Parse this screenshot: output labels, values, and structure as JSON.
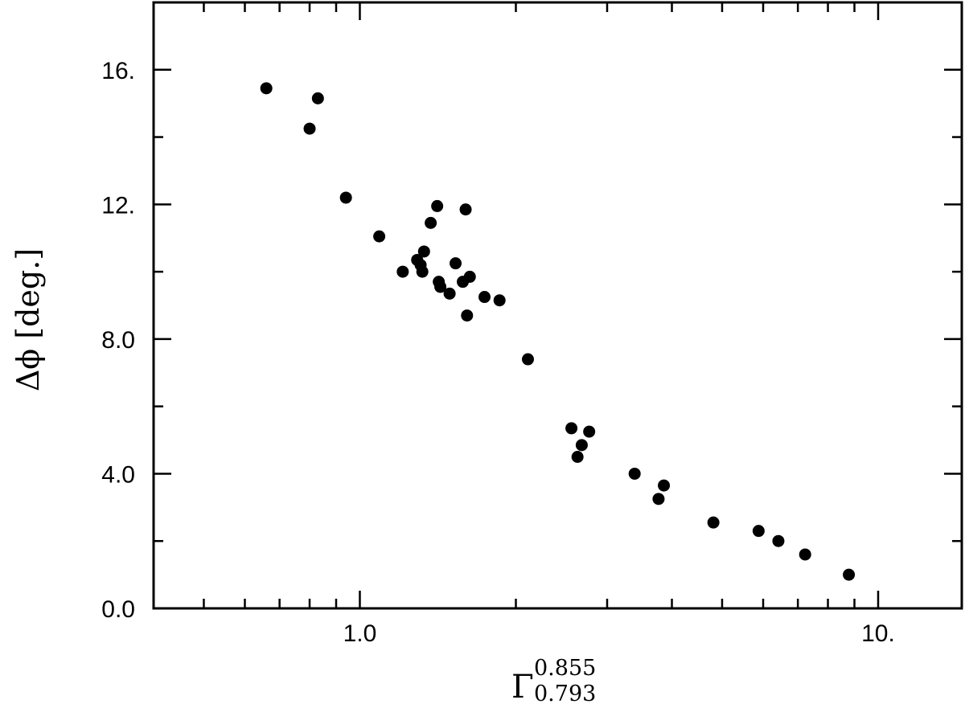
{
  "chart_data": {
    "type": "scatter",
    "title": "",
    "xlabel": {
      "base": "Γ",
      "superscript": "0.855",
      "subscript": "0.793"
    },
    "ylabel": "Δϕ  [deg.]",
    "x_scale": "log",
    "xlim": [
      0.4,
      14.5
    ],
    "ylim": [
      0,
      18
    ],
    "x_tick_labels": [
      {
        "value": 1.0,
        "label": "1.0"
      },
      {
        "value": 10.0,
        "label": "10."
      }
    ],
    "y_tick_labels": [
      {
        "value": 0,
        "label": "0.0"
      },
      {
        "value": 4,
        "label": "4.0"
      },
      {
        "value": 8,
        "label": "8.0"
      },
      {
        "value": 12,
        "label": "12."
      },
      {
        "value": 16,
        "label": "16."
      }
    ],
    "grid": false,
    "marker_color": "#000000",
    "points": [
      {
        "x": 0.66,
        "y": 15.45
      },
      {
        "x": 0.8,
        "y": 14.25
      },
      {
        "x": 0.83,
        "y": 15.15
      },
      {
        "x": 0.94,
        "y": 12.2
      },
      {
        "x": 1.09,
        "y": 11.05
      },
      {
        "x": 1.21,
        "y": 10.0
      },
      {
        "x": 1.29,
        "y": 10.35
      },
      {
        "x": 1.31,
        "y": 10.2
      },
      {
        "x": 1.32,
        "y": 10.0
      },
      {
        "x": 1.33,
        "y": 10.6
      },
      {
        "x": 1.37,
        "y": 11.45
      },
      {
        "x": 1.41,
        "y": 11.95
      },
      {
        "x": 1.42,
        "y": 9.7
      },
      {
        "x": 1.43,
        "y": 9.55
      },
      {
        "x": 1.49,
        "y": 9.35
      },
      {
        "x": 1.53,
        "y": 10.25
      },
      {
        "x": 1.58,
        "y": 9.7
      },
      {
        "x": 1.6,
        "y": 11.85
      },
      {
        "x": 1.61,
        "y": 8.7
      },
      {
        "x": 1.63,
        "y": 9.85
      },
      {
        "x": 1.74,
        "y": 9.25
      },
      {
        "x": 1.86,
        "y": 9.15
      },
      {
        "x": 2.11,
        "y": 7.4
      },
      {
        "x": 2.56,
        "y": 5.35
      },
      {
        "x": 2.63,
        "y": 4.5
      },
      {
        "x": 2.68,
        "y": 4.85
      },
      {
        "x": 2.77,
        "y": 5.25
      },
      {
        "x": 3.39,
        "y": 4.0
      },
      {
        "x": 3.77,
        "y": 3.25
      },
      {
        "x": 3.86,
        "y": 3.65
      },
      {
        "x": 4.81,
        "y": 2.55
      },
      {
        "x": 5.88,
        "y": 2.3
      },
      {
        "x": 6.42,
        "y": 2.0
      },
      {
        "x": 7.23,
        "y": 1.6
      },
      {
        "x": 8.78,
        "y": 1.0
      }
    ]
  }
}
